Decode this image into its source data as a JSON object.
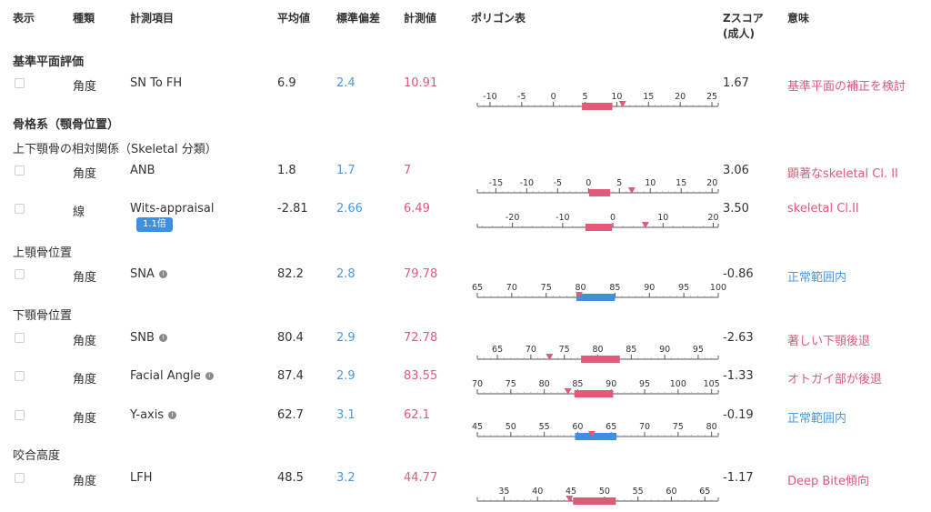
{
  "header": {
    "display": "表示",
    "type": "種類",
    "item": "計測項目",
    "mean": "平均値",
    "sd": "標準偏差",
    "measured": "計測値",
    "polygon": "ポリゴン表",
    "zscore_line1": "Zスコア",
    "zscore_line2": "(成人)",
    "meaning": "意味"
  },
  "sections": {
    "reference": "基準平面評価",
    "skeletal": "骨格系（顎骨位置）",
    "relation": "上下顎骨の相対関係（Skeletal 分類）",
    "maxilla": "上顎骨位置",
    "mandible": "下顎骨位置",
    "occlusal": "咬合高度"
  },
  "rows": [
    {
      "type": "角度",
      "name": "SN To FH",
      "info": false,
      "mean": "6.9",
      "sd": "2.4",
      "value": "10.91",
      "z": "1.67",
      "meaning": "基準平面の補正を検討",
      "meaning_color": "red"
    },
    {
      "type": "角度",
      "name": "ANB",
      "info": false,
      "mean": "1.8",
      "sd": "1.7",
      "value": "7",
      "z": "3.06",
      "meaning": "顕著なskeletal Cl. II",
      "meaning_color": "red"
    },
    {
      "type": "線",
      "name": "Wits-appraisal",
      "info": false,
      "badge": "1.1倍",
      "mean": "-2.81",
      "sd": "2.66",
      "value": "6.49",
      "z": "3.50",
      "meaning": "skeletal Cl.II",
      "meaning_color": "red"
    },
    {
      "type": "角度",
      "name": "SNA",
      "info": true,
      "mean": "82.2",
      "sd": "2.8",
      "value": "79.78",
      "z": "-0.86",
      "meaning": "正常範囲内",
      "meaning_color": "blue"
    },
    {
      "type": "角度",
      "name": "SNB",
      "info": true,
      "mean": "80.4",
      "sd": "2.9",
      "value": "72.78",
      "z": "-2.63",
      "meaning": "著しい下顎後退",
      "meaning_color": "red"
    },
    {
      "type": "角度",
      "name": "Facial Angle",
      "info": true,
      "mean": "87.4",
      "sd": "2.9",
      "value": "83.55",
      "z": "-1.33",
      "meaning": "オトガイ部が後退",
      "meaning_color": "red"
    },
    {
      "type": "角度",
      "name": "Y-axis",
      "info": true,
      "mean": "62.7",
      "sd": "3.1",
      "value": "62.1",
      "z": "-0.19",
      "meaning": "正常範囲内",
      "meaning_color": "blue"
    },
    {
      "type": "角度",
      "name": "LFH",
      "info": false,
      "mean": "48.5",
      "sd": "3.2",
      "value": "44.77",
      "z": "-1.17",
      "meaning": "Deep Bite傾向",
      "meaning_color": "red"
    }
  ],
  "polygons": [
    {
      "ticks": [
        "-10",
        "-5",
        "0",
        "5",
        "10",
        "15",
        "20",
        "25"
      ],
      "tick_values": [
        -10,
        -5,
        0,
        5,
        10,
        15,
        20,
        25
      ],
      "min": -12,
      "max": 26,
      "mean": 6.9,
      "sd": 2.4,
      "value": 10.91,
      "bar_color": "#e05a7a"
    },
    {
      "ticks": [
        "-15",
        "-10",
        "-5",
        "0",
        "5",
        "10",
        "15",
        "20"
      ],
      "tick_values": [
        -15,
        -10,
        -5,
        0,
        5,
        10,
        15,
        20
      ],
      "min": -18,
      "max": 21,
      "mean": 1.8,
      "sd": 1.7,
      "value": 7,
      "bar_color": "#e05a7a"
    },
    {
      "ticks": [
        "-20",
        "-10",
        "0",
        "10",
        "20"
      ],
      "tick_values": [
        -20,
        -10,
        0,
        10,
        20
      ],
      "min": -27,
      "max": 21,
      "mean": -2.81,
      "sd": 2.66,
      "value": 6.49,
      "bar_color": "#e05a7a"
    },
    {
      "ticks": [
        "65",
        "70",
        "75",
        "80",
        "85",
        "90",
        "95",
        "100"
      ],
      "tick_values": [
        65,
        70,
        75,
        80,
        85,
        90,
        95,
        100
      ],
      "min": 65,
      "max": 100,
      "mean": 82.2,
      "sd": 2.8,
      "value": 79.78,
      "bar_color": "#3d8fe0"
    },
    {
      "ticks": [
        "65",
        "70",
        "75",
        "80",
        "85",
        "90",
        "95"
      ],
      "tick_values": [
        65,
        70,
        75,
        80,
        85,
        90,
        95
      ],
      "min": 62,
      "max": 98,
      "mean": 80.4,
      "sd": 2.9,
      "value": 72.78,
      "bar_color": "#e05a7a"
    },
    {
      "ticks": [
        "70",
        "75",
        "80",
        "85",
        "90",
        "95",
        "100",
        "105"
      ],
      "tick_values": [
        70,
        75,
        80,
        85,
        90,
        95,
        100,
        105
      ],
      "min": 70,
      "max": 106,
      "mean": 87.4,
      "sd": 2.9,
      "value": 83.55,
      "bar_color": "#e05a7a"
    },
    {
      "ticks": [
        "45",
        "50",
        "55",
        "60",
        "65",
        "70",
        "75",
        "80"
      ],
      "tick_values": [
        45,
        50,
        55,
        60,
        65,
        70,
        75,
        80
      ],
      "min": 45,
      "max": 81,
      "mean": 62.7,
      "sd": 3.1,
      "value": 62.1,
      "bar_color": "#3d8fe0"
    },
    {
      "ticks": [
        "35",
        "40",
        "45",
        "50",
        "55",
        "60",
        "65"
      ],
      "tick_values": [
        35,
        40,
        45,
        50,
        55,
        60,
        65
      ],
      "min": 31,
      "max": 67,
      "mean": 48.5,
      "sd": 3.2,
      "value": 44.77,
      "bar_color": "#e05a7a"
    }
  ],
  "colors": {
    "red": "#e05a7a",
    "blue": "#4a9ae0"
  }
}
